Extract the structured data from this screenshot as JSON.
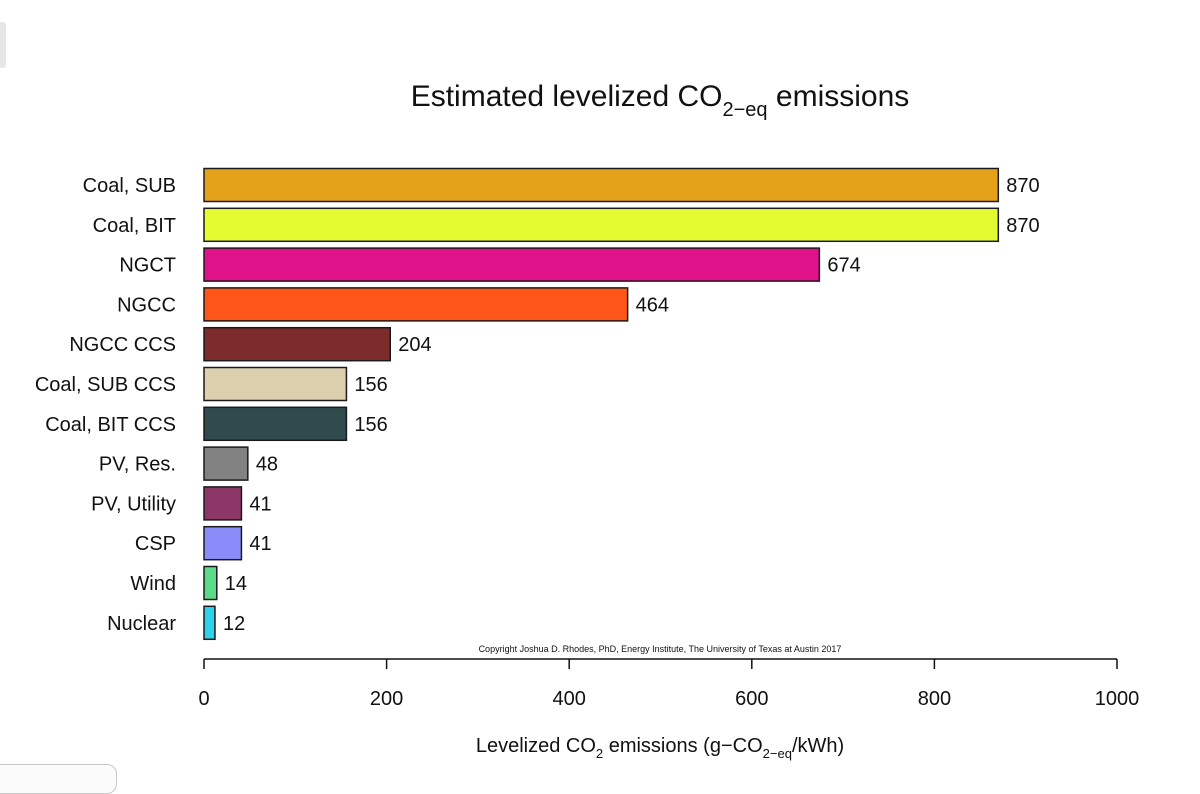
{
  "chart_data": {
    "type": "bar",
    "orientation": "horizontal",
    "title": {
      "main": "Estimated levelized CO",
      "sub": "2−eq",
      "rest": " emissions"
    },
    "xlabel": {
      "part1": "Levelized CO",
      "sub1": "2",
      "part2": " emissions (g−CO",
      "sub2": "2−eq",
      "part3": "/kWh)"
    },
    "xlim": [
      0,
      1000
    ],
    "xticks": [
      0,
      200,
      400,
      600,
      800,
      1000
    ],
    "grid": false,
    "annotation": "Copyright Joshua D. Rhodes, PhD, Energy Institute, The University of Texas at Austin 2017",
    "categories": [
      "Coal, SUB",
      "Coal, BIT",
      "NGCT",
      "NGCC",
      "NGCC CCS",
      "Coal, SUB CCS",
      "Coal, BIT CCS",
      "PV, Res.",
      "PV, Utility",
      "CSP",
      "Wind",
      "Nuclear"
    ],
    "values": [
      870,
      870,
      674,
      464,
      204,
      156,
      156,
      48,
      41,
      41,
      14,
      12
    ],
    "colors": [
      "#E3A21A",
      "#E4FB32",
      "#E0128A",
      "#FF5518",
      "#7D2B2B",
      "#DDD0AE",
      "#2F4B4D",
      "#828282",
      "#8C3767",
      "#8B8CFA",
      "#5BDB88",
      "#2FD2EB"
    ]
  }
}
